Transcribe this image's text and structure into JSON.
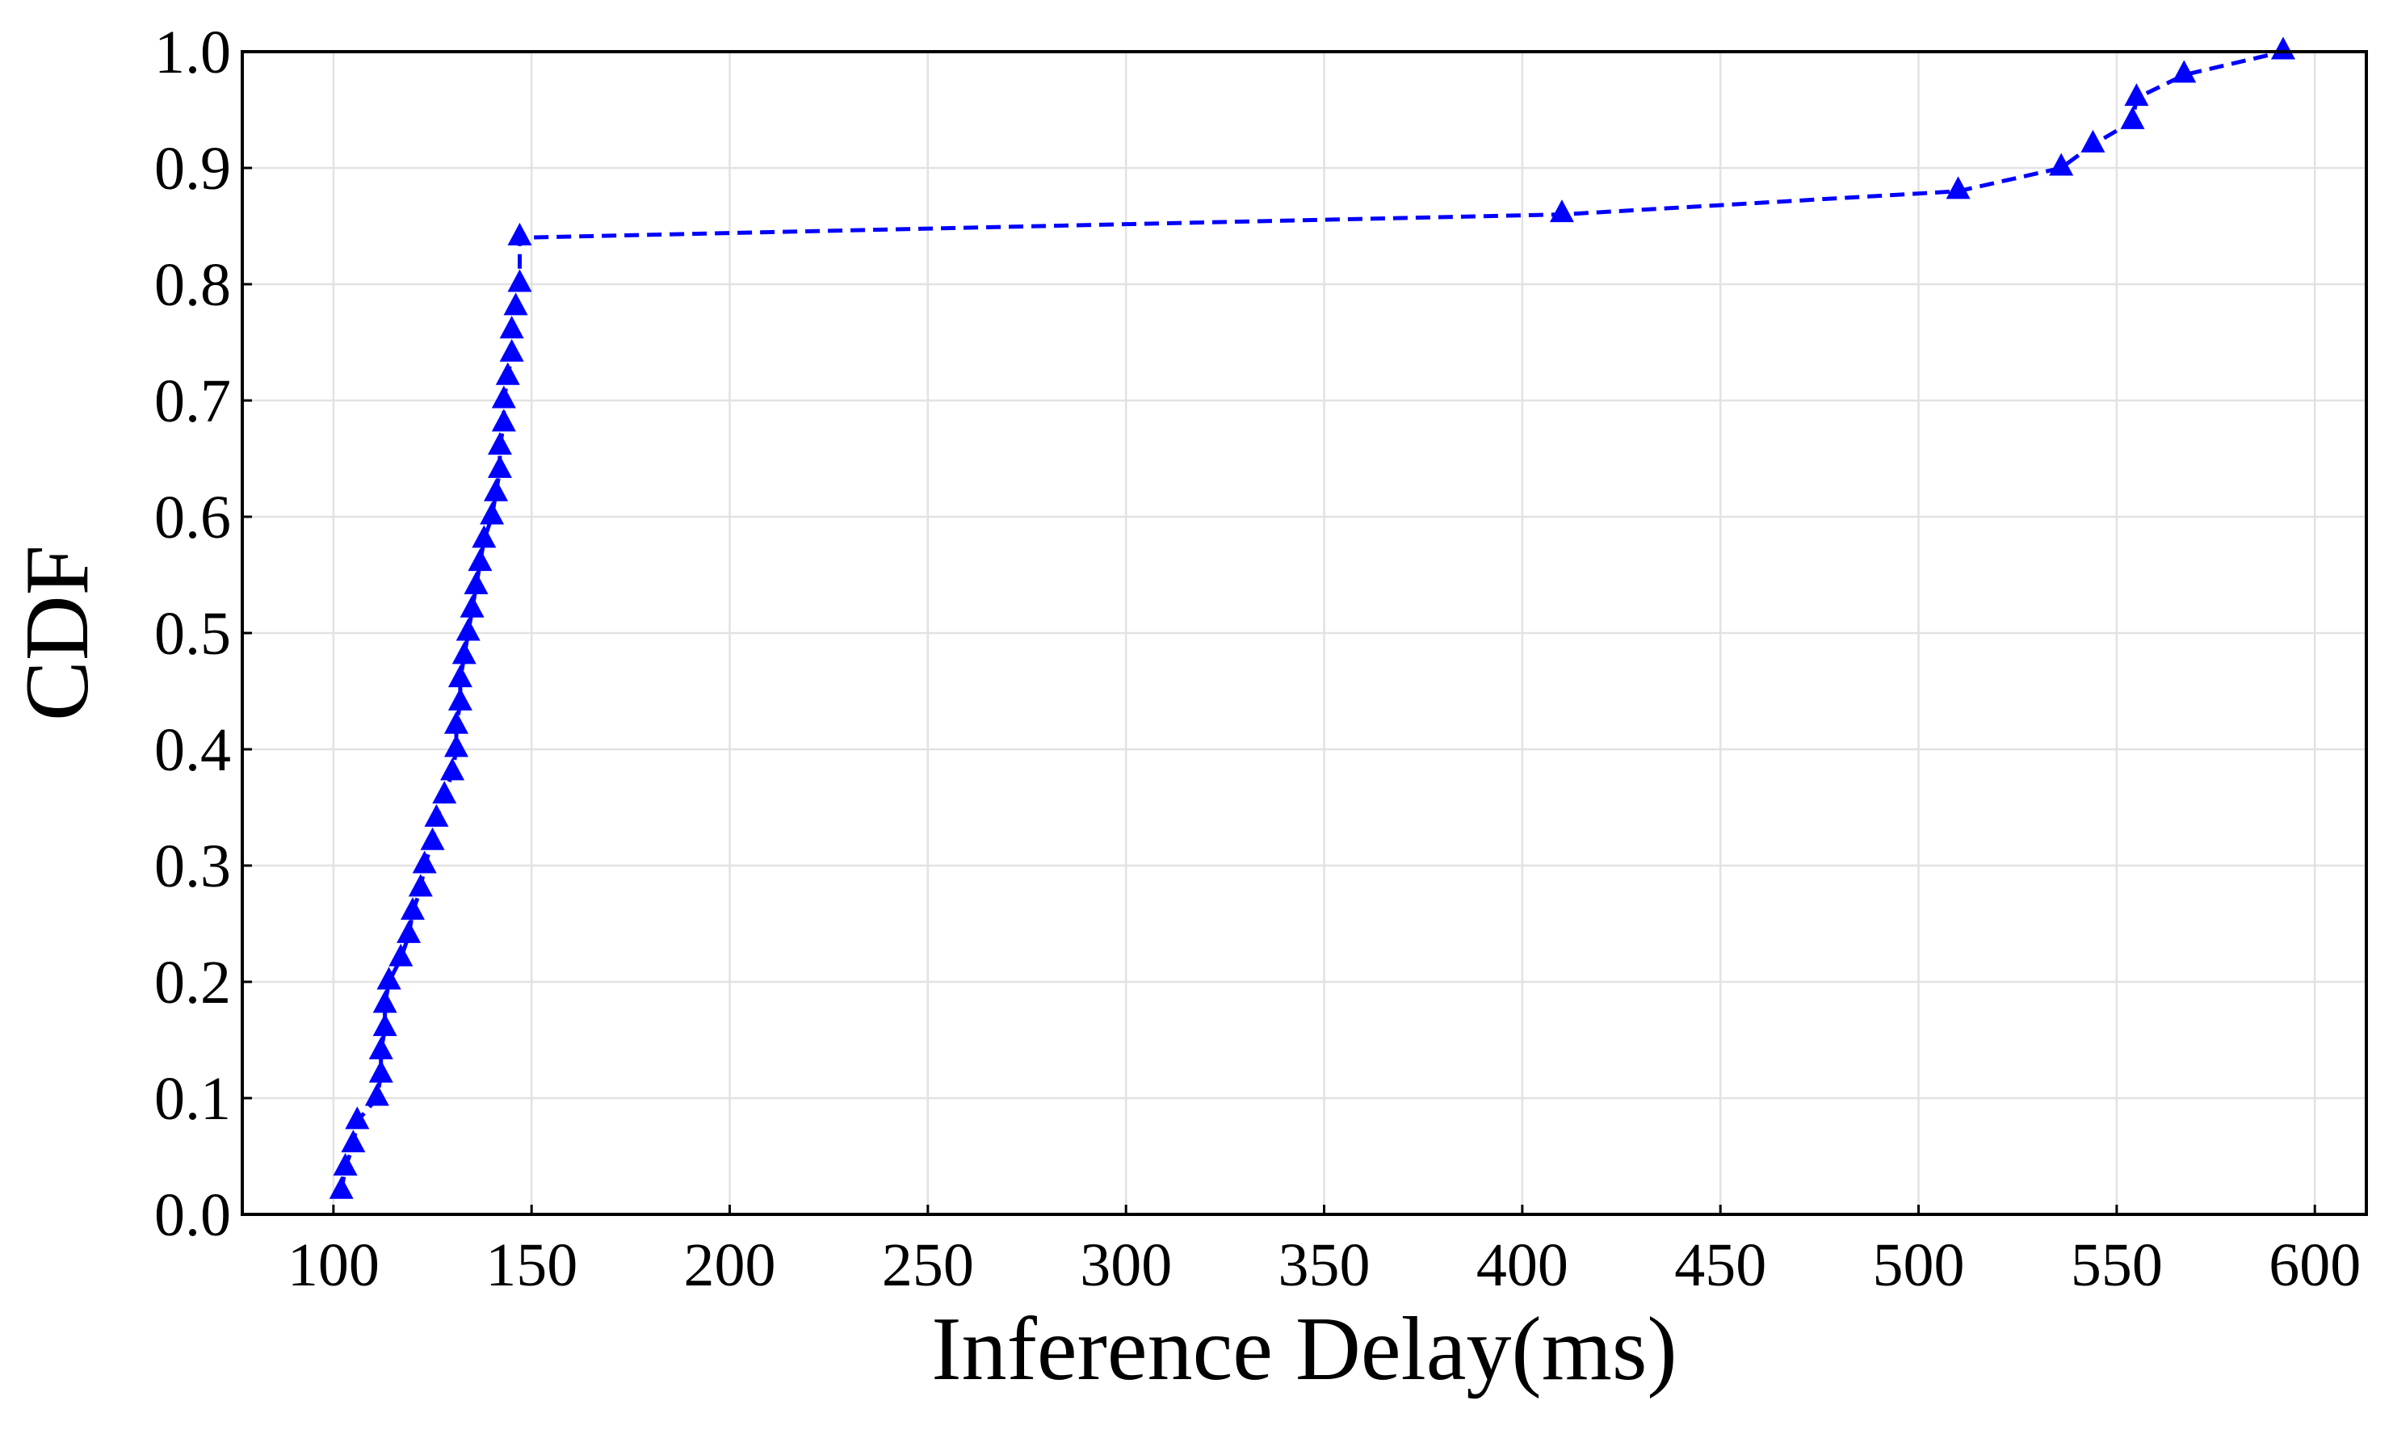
{
  "chart_data": {
    "type": "line",
    "xlabel": "Inference Delay(ms)",
    "ylabel": "CDF",
    "xlim": [
      77,
      613
    ],
    "ylim": [
      0.0,
      1.0
    ],
    "xticks": [
      100,
      150,
      200,
      250,
      300,
      350,
      400,
      450,
      500,
      550,
      600
    ],
    "yticks": [
      0.0,
      0.1,
      0.2,
      0.3,
      0.4,
      0.5,
      0.6,
      0.7,
      0.8,
      0.9,
      1.0
    ],
    "xtick_labels": [
      "100",
      "150",
      "200",
      "250",
      "300",
      "350",
      "400",
      "450",
      "500",
      "550",
      "600"
    ],
    "ytick_labels": [
      "0.0",
      "0.1",
      "0.2",
      "0.3",
      "0.4",
      "0.5",
      "0.6",
      "0.7",
      "0.8",
      "0.9",
      "1.0"
    ],
    "grid": true,
    "series": [
      {
        "color": "#0000ff",
        "line_style": "dashed",
        "marker": "triangle",
        "x": [
          102,
          103,
          105,
          106,
          111,
          112,
          112,
          113,
          113,
          114,
          114,
          117,
          119,
          120,
          122,
          123,
          125,
          126,
          128,
          130,
          131,
          131,
          132,
          132,
          133,
          134,
          135,
          136,
          137,
          138,
          140,
          141,
          142,
          142,
          143,
          143,
          144,
          145,
          145,
          146,
          147,
          147,
          410,
          510,
          536,
          544,
          554,
          555,
          567,
          592
        ],
        "y": [
          0.02,
          0.04,
          0.06,
          0.08,
          0.1,
          0.12,
          0.14,
          0.16,
          0.18,
          0.2,
          0.2,
          0.22,
          0.24,
          0.26,
          0.28,
          0.3,
          0.32,
          0.34,
          0.36,
          0.38,
          0.4,
          0.42,
          0.44,
          0.46,
          0.48,
          0.5,
          0.52,
          0.54,
          0.56,
          0.58,
          0.6,
          0.62,
          0.64,
          0.66,
          0.68,
          0.7,
          0.72,
          0.74,
          0.76,
          0.78,
          0.8,
          0.84,
          0.86,
          0.88,
          0.9,
          0.92,
          0.94,
          0.96,
          0.98,
          1.0
        ]
      }
    ]
  }
}
